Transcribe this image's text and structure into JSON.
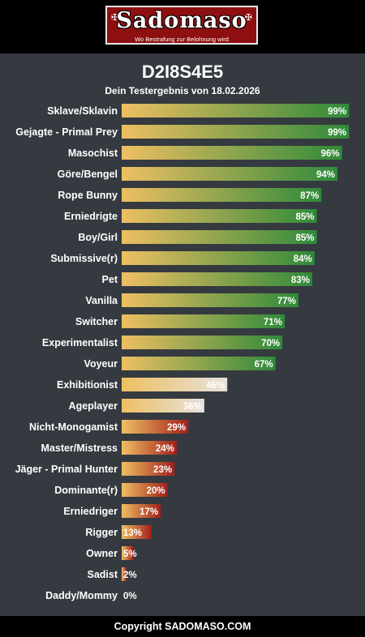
{
  "header": {
    "logo_text": "Sadomaso",
    "logo_tagline": "Wo Bestrafung zur Belohnung wird"
  },
  "title": "D2I8S4E5",
  "subtitle": "Dein Testergebnis von 18.02.2026",
  "footer": {
    "text": "Copyright SADOMASO.COM"
  },
  "colors": {
    "background": "#353a40",
    "header_bg": "#000000",
    "logo_red": "#8e0f10",
    "bar_start": "#eebf62",
    "bar_high_end": "#2f8a3a",
    "bar_mid_end": "#e6e2dc",
    "bar_low_end": "#a31f1a"
  },
  "chart_data": {
    "type": "bar",
    "orientation": "horizontal",
    "unit": "%",
    "xlim": [
      0,
      100
    ],
    "categories": [
      "Sklave/Sklavin",
      "Gejagte - Primal Prey",
      "Masochist",
      "Göre/Bengel",
      "Rope Bunny",
      "Erniedrigte",
      "Boy/Girl",
      "Submissive(r)",
      "Pet",
      "Vanilla",
      "Switcher",
      "Experimentalist",
      "Voyeur",
      "Exhibitionist",
      "Ageplayer",
      "Nicht-Monogamist",
      "Master/Mistress",
      "Jäger - Primal Hunter",
      "Dominante(r)",
      "Erniedriger",
      "Rigger",
      "Owner",
      "Sadist",
      "Daddy/Mommy"
    ],
    "values": [
      99,
      99,
      96,
      94,
      87,
      85,
      85,
      84,
      83,
      77,
      71,
      70,
      67,
      46,
      36,
      29,
      24,
      23,
      20,
      17,
      13,
      5,
      2,
      0
    ],
    "data_labels": [
      "99%",
      "99%",
      "96%",
      "94%",
      "87%",
      "85%",
      "85%",
      "84%",
      "83%",
      "77%",
      "71%",
      "70%",
      "67%",
      "46%",
      "36%",
      "29%",
      "24%",
      "23%",
      "20%",
      "17%",
      "13%",
      "5%",
      "2%",
      "0%"
    ]
  }
}
